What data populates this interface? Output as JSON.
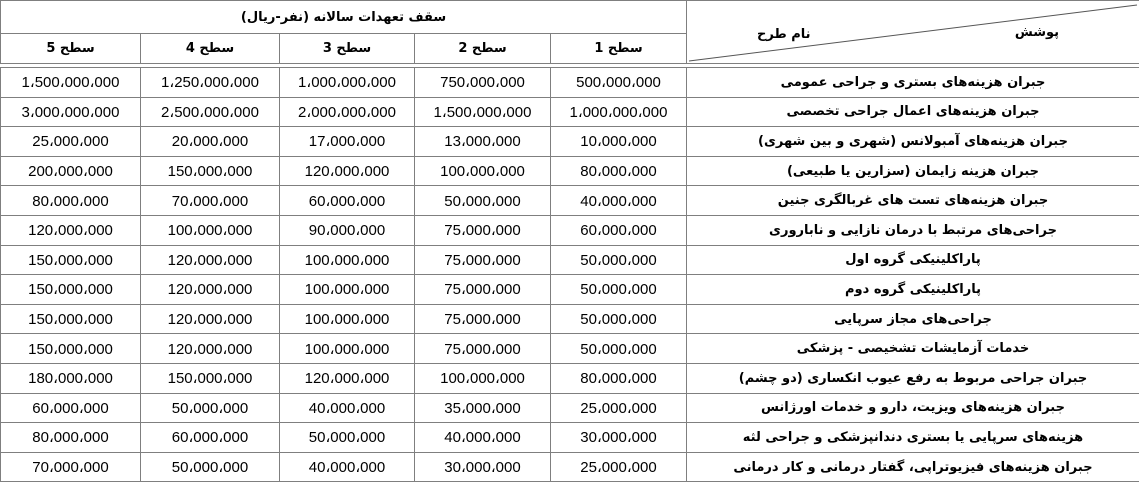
{
  "table": {
    "corner": {
      "top": "پوشش",
      "bottom": "نام طرح"
    },
    "group_header": "سقف تعهدات سالانه (نفر-ریال)",
    "levels": [
      "سطح 1",
      "سطح 2",
      "سطح 3",
      "سطح 4",
      "سطح 5"
    ],
    "rows": [
      {
        "name": "جبران هزینه‌های بستری و جراحی عمومی",
        "values": [
          "500،000،000",
          "750،000،000",
          "1،000،000،000",
          "1،250،000،000",
          "1،500،000،000"
        ]
      },
      {
        "name": "جبران هزینه‌های اعمال جراحی تخصصی",
        "values": [
          "1،000،000،000",
          "1،500،000،000",
          "2،000،000،000",
          "2،500،000،000",
          "3،000،000،000"
        ]
      },
      {
        "name": "جبران هزینه‌های آمبولانس (شهری و بین شهری)",
        "values": [
          "10،000،000",
          "13،000،000",
          "17،000،000",
          "20،000،000",
          "25،000،000"
        ]
      },
      {
        "name": "جبران هزینه زایمان (سزارین یا طبیعی)",
        "values": [
          "80،000،000",
          "100،000،000",
          "120،000،000",
          "150،000،000",
          "200،000،000"
        ]
      },
      {
        "name": "جبران هزینه‌های تست های غربالگری جنین",
        "values": [
          "40،000،000",
          "50،000،000",
          "60،000،000",
          "70،000،000",
          "80،000،000"
        ]
      },
      {
        "name": "جراحی‌های مرتبط با درمان نازایی و ناباروری",
        "values": [
          "60،000،000",
          "75،000،000",
          "90،000،000",
          "100،000،000",
          "120،000،000"
        ]
      },
      {
        "name": "پاراکلینیکی گروه اول",
        "values": [
          "50،000،000",
          "75،000،000",
          "100،000،000",
          "120،000،000",
          "150،000،000"
        ]
      },
      {
        "name": "پاراکلینیکی گروه دوم",
        "values": [
          "50،000،000",
          "75،000،000",
          "100،000،000",
          "120،000،000",
          "150،000،000"
        ]
      },
      {
        "name": "جراحی‌های مجاز سرپایی",
        "values": [
          "50،000،000",
          "75،000،000",
          "100،000،000",
          "120،000،000",
          "150،000،000"
        ]
      },
      {
        "name": "خدمات آزمایشات تشخیصی - پزشکی",
        "values": [
          "50،000،000",
          "75،000،000",
          "100،000،000",
          "120،000،000",
          "150،000،000"
        ]
      },
      {
        "name": "جبران جراحی مربوط به رفع عیوب انکساری (دو چشم)",
        "values": [
          "80،000،000",
          "100،000،000",
          "120،000،000",
          "150،000،000",
          "180،000،000"
        ]
      },
      {
        "name": "جبران هزینه‌های ویزیت، دارو و خدمات اورژانس",
        "values": [
          "25،000،000",
          "35،000،000",
          "40،000،000",
          "50،000،000",
          "60،000،000"
        ]
      },
      {
        "name": "هزینه‌های سرپایی یا بستری دندانپزشکی و جراحی لثه",
        "values": [
          "30،000،000",
          "40،000،000",
          "50،000،000",
          "60،000،000",
          "80،000،000"
        ]
      },
      {
        "name": "جبران هزینه‌های فیزیوتراپی، گفتار درمانی و کار درمانی",
        "values": [
          "25،000،000",
          "30،000،000",
          "40،000،000",
          "50،000،000",
          "70،000،000"
        ]
      }
    ]
  }
}
